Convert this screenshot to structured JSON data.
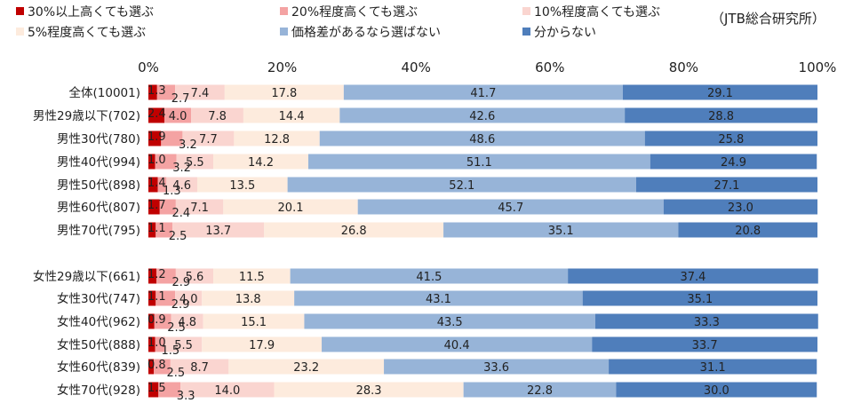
{
  "source": "（JTB総合研究所）",
  "chart_data": {
    "type": "bar",
    "orientation": "horizontal",
    "stacked": true,
    "percent": true,
    "xlim": [
      0,
      100
    ],
    "ticks": [
      "0%",
      "20%",
      "40%",
      "60%",
      "80%",
      "100%"
    ],
    "colors": [
      "#C00000",
      "#F4A3A3",
      "#FAD5D0",
      "#FDEBDD",
      "#97B4D8",
      "#4F7EBB"
    ],
    "series": [
      {
        "name": "30%以上高くても選ぶ"
      },
      {
        "name": "20%程度高くても選ぶ"
      },
      {
        "name": "10%程度高くても選ぶ"
      },
      {
        "name": "5%程度高くても選ぶ"
      },
      {
        "name": "価格差があるなら選ばない"
      },
      {
        "name": "分からない"
      }
    ],
    "categories": [
      "全体(10001)",
      "男性29歳以下(702)",
      "男性30代(780)",
      "男性40代(994)",
      "男性50代(898)",
      "男性60代(807)",
      "男性70代(795)",
      "女性29歳以下(661)",
      "女性30代(747)",
      "女性40代(962)",
      "女性50代(888)",
      "女性60代(839)",
      "女性70代(928)"
    ],
    "rows": [
      [
        1.3,
        2.7,
        7.4,
        17.8,
        41.7,
        29.1
      ],
      [
        2.4,
        4.0,
        7.8,
        14.4,
        42.6,
        28.8
      ],
      [
        1.9,
        3.2,
        7.7,
        12.8,
        48.6,
        25.8
      ],
      [
        1.0,
        3.2,
        5.5,
        14.2,
        51.1,
        24.9
      ],
      [
        1.4,
        1.3,
        4.6,
        13.5,
        52.1,
        27.1
      ],
      [
        1.7,
        2.4,
        7.1,
        20.1,
        45.7,
        23.0
      ],
      [
        1.1,
        2.5,
        13.7,
        26.8,
        35.1,
        20.8
      ],
      [
        1.2,
        2.9,
        5.6,
        11.5,
        41.5,
        37.4
      ],
      [
        1.1,
        2.9,
        4.0,
        13.8,
        43.1,
        35.1
      ],
      [
        0.9,
        2.5,
        4.8,
        15.1,
        43.5,
        33.3
      ],
      [
        1.0,
        1.5,
        5.5,
        17.9,
        40.4,
        33.7
      ],
      [
        0.8,
        2.5,
        8.7,
        23.2,
        33.6,
        31.1
      ],
      [
        1.5,
        3.3,
        14.0,
        28.3,
        22.8,
        30.0
      ]
    ]
  }
}
